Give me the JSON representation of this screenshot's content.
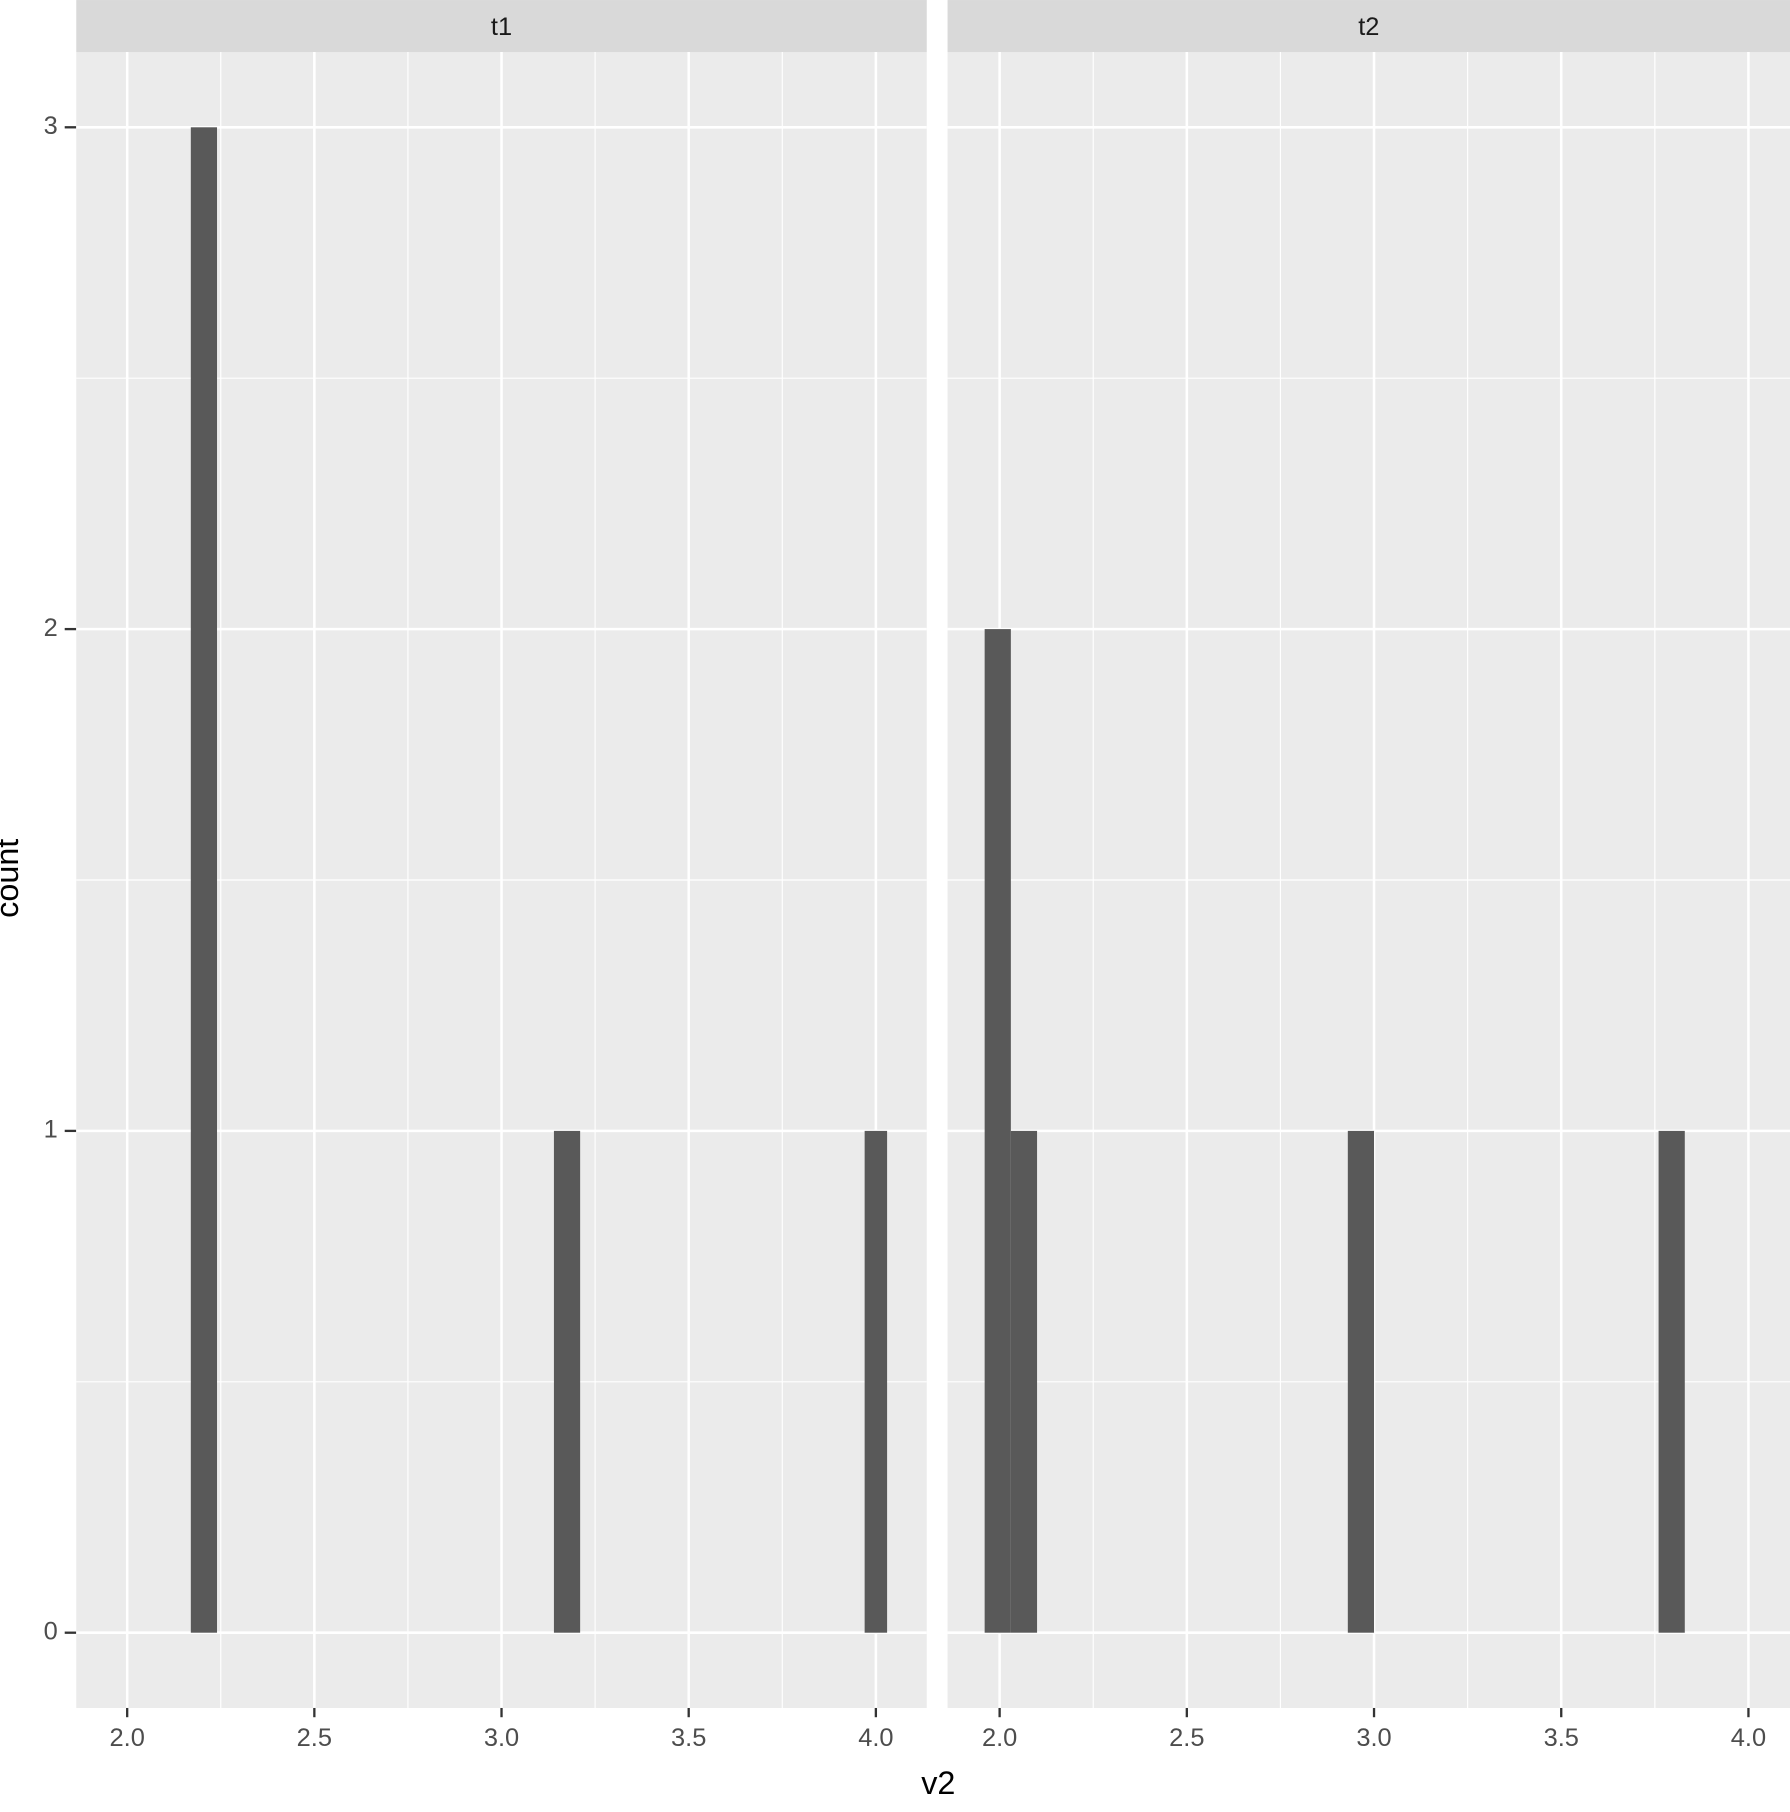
{
  "chart_data": {
    "type": "histogram",
    "x_label": "v2",
    "y_label": "count",
    "color": "#595959",
    "grid": true,
    "ylim": [
      -0.15,
      3.15
    ],
    "yticks": [
      0,
      1,
      2,
      3
    ],
    "panels": [
      {
        "title": "t1",
        "bins": [
          2.17,
          2.24,
          3.14,
          3.21,
          3.97,
          4.03
        ],
        "counts": [
          3,
          0,
          1,
          0,
          1
        ],
        "xlim": [
          1.864,
          4.136
        ],
        "xticks": [
          {
            "value": 2,
            "label": "2.0"
          },
          {
            "value": 2.5,
            "label": "2.5"
          },
          {
            "value": 3,
            "label": "3.0"
          },
          {
            "value": 3.5,
            "label": "3.5"
          },
          {
            "value": 4,
            "label": "4.0"
          }
        ]
      },
      {
        "title": "t2",
        "bins": [
          1.96,
          2.03,
          2.1,
          2.93,
          3.0,
          3.76,
          3.83
        ],
        "counts": [
          2,
          1,
          0,
          1,
          0,
          1
        ],
        "xlim": [
          1.861,
          4.111
        ],
        "xticks": [
          {
            "value": 2,
            "label": "2.0"
          },
          {
            "value": 2.5,
            "label": "2.5"
          },
          {
            "value": 3,
            "label": "3.0"
          },
          {
            "value": 3.5,
            "label": "3.5"
          },
          {
            "value": 4,
            "label": "4.0"
          }
        ]
      }
    ]
  }
}
